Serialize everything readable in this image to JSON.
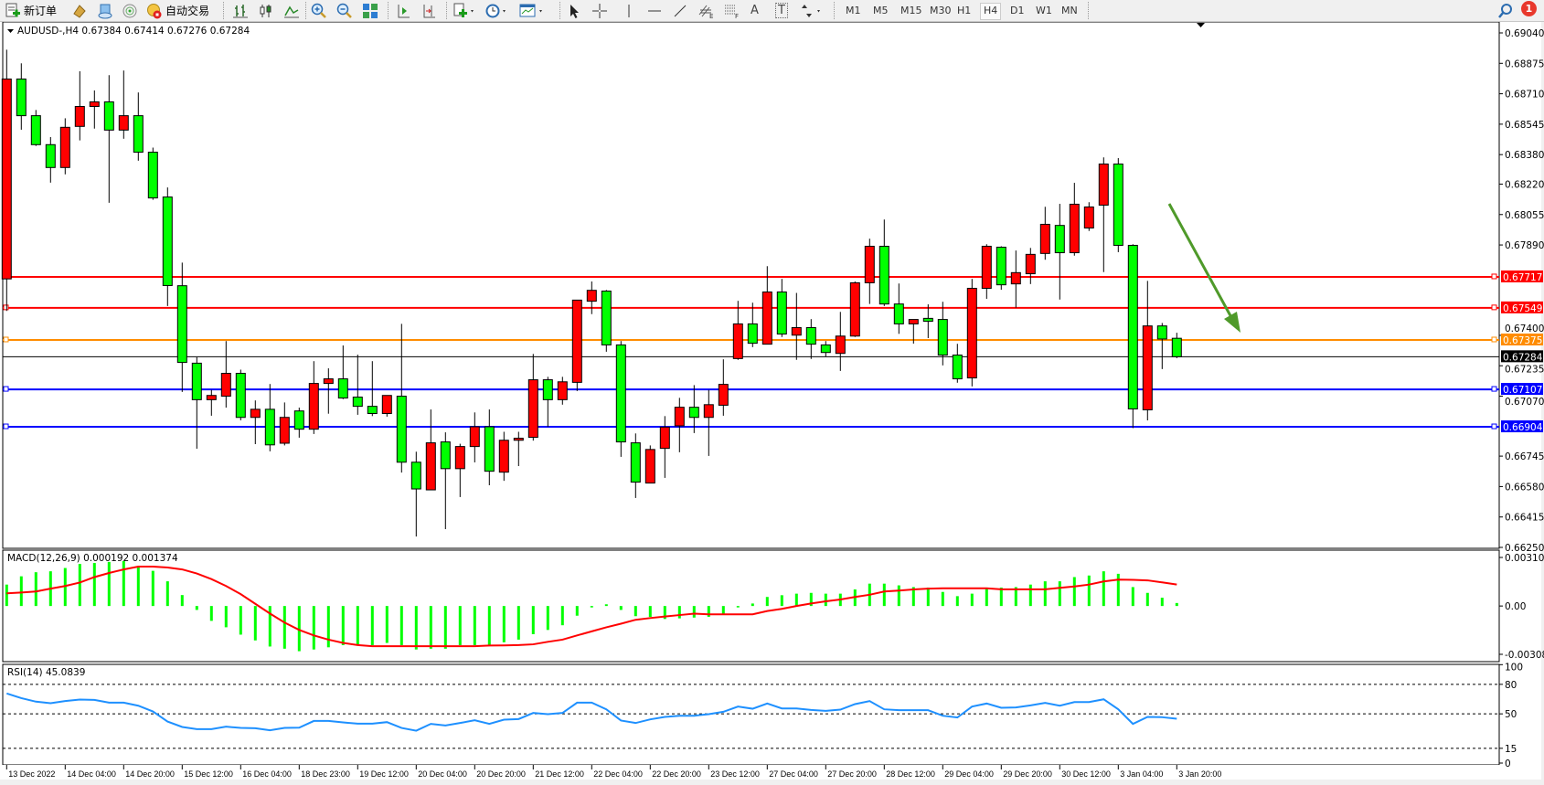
{
  "toolbar": {
    "new_order_label": "新订单",
    "auto_trading_label": "自动交易",
    "timeframes": [
      "M1",
      "M5",
      "M15",
      "M30",
      "H1",
      "H4",
      "D1",
      "W1",
      "MN"
    ],
    "selected_timeframe": "H4",
    "notification_count": "1",
    "text_tool_label": "A",
    "text_label_tool": "T"
  },
  "chart": {
    "header": "AUDUSD-,H4  0.67384 0.67414 0.67276 0.67284",
    "symbol": "AUDUSD-",
    "timeframe": "H4",
    "bull_color": "#ff0000",
    "bear_color": "#00ff00",
    "price_ticks": [
      "0.69040",
      "0.68875",
      "0.68710",
      "0.68545",
      "0.68380",
      "0.68220",
      "0.68055",
      "0.67890",
      "0.67400",
      "0.67235",
      "0.67070",
      "0.66745",
      "0.66580",
      "0.66415",
      "0.66250"
    ],
    "price_range": [
      0.6625,
      0.6904
    ],
    "current_price": {
      "value": 0.67284,
      "label": "0.67284",
      "color": "#000000"
    },
    "levels": [
      {
        "value": 0.67717,
        "label": "0.67717",
        "color": "#ff0000"
      },
      {
        "value": 0.67549,
        "label": "0.67549",
        "color": "#ff0000"
      },
      {
        "value": 0.67375,
        "label": "0.67375",
        "color": "#ff8c00"
      },
      {
        "value": 0.67107,
        "label": "0.67107",
        "color": "#0000ff"
      },
      {
        "value": 0.66904,
        "label": "0.66904",
        "color": "#0000ff"
      }
    ],
    "arrow_color": "#4f9a2a",
    "candles": [
      [
        0.67706,
        0.68949,
        0.67532,
        0.6879
      ],
      [
        0.6879,
        0.68875,
        0.68515,
        0.68591
      ],
      [
        0.68591,
        0.68622,
        0.68427,
        0.68434
      ],
      [
        0.68434,
        0.68475,
        0.68228,
        0.6831
      ],
      [
        0.6831,
        0.68577,
        0.68273,
        0.68528
      ],
      [
        0.68533,
        0.68832,
        0.68457,
        0.68641
      ],
      [
        0.68641,
        0.68728,
        0.68521,
        0.68666
      ],
      [
        0.68666,
        0.68811,
        0.68119,
        0.68513
      ],
      [
        0.68513,
        0.68836,
        0.68466,
        0.68591
      ],
      [
        0.68591,
        0.68717,
        0.68347,
        0.68393
      ],
      [
        0.68393,
        0.68418,
        0.68135,
        0.68145
      ],
      [
        0.6815,
        0.68202,
        0.67559,
        0.6767
      ],
      [
        0.67669,
        0.67794,
        0.67093,
        0.67253
      ],
      [
        0.67249,
        0.67281,
        0.66785,
        0.67051
      ],
      [
        0.67051,
        0.67104,
        0.66964,
        0.67074
      ],
      [
        0.6707,
        0.67369,
        0.67008,
        0.67194
      ],
      [
        0.67194,
        0.67214,
        0.66939,
        0.66955
      ],
      [
        0.66955,
        0.67047,
        0.6681,
        0.66999
      ],
      [
        0.66999,
        0.67136,
        0.66771,
        0.66806
      ],
      [
        0.66815,
        0.67036,
        0.66803,
        0.66955
      ],
      [
        0.6699,
        0.67008,
        0.66845,
        0.66891
      ],
      [
        0.66891,
        0.6726,
        0.66865,
        0.67139
      ],
      [
        0.67139,
        0.67221,
        0.66975,
        0.67164
      ],
      [
        0.67164,
        0.67345,
        0.67054,
        0.6706
      ],
      [
        0.67065,
        0.67295,
        0.66969,
        0.67015
      ],
      [
        0.67015,
        0.6726,
        0.66962,
        0.66976
      ],
      [
        0.66976,
        0.67074,
        0.66959,
        0.67074
      ],
      [
        0.6707,
        0.67462,
        0.66656,
        0.66712
      ],
      [
        0.66712,
        0.66769,
        0.66309,
        0.66567
      ],
      [
        0.66562,
        0.66998,
        0.66562,
        0.66817
      ],
      [
        0.66822,
        0.66874,
        0.66349,
        0.66677
      ],
      [
        0.66677,
        0.66812,
        0.66523,
        0.66797
      ],
      [
        0.66797,
        0.66982,
        0.66711,
        0.66904
      ],
      [
        0.66904,
        0.66998,
        0.66587,
        0.66663
      ],
      [
        0.66658,
        0.66877,
        0.66611,
        0.66831
      ],
      [
        0.66831,
        0.66877,
        0.66691,
        0.66842
      ],
      [
        0.66847,
        0.67299,
        0.66829,
        0.67159
      ],
      [
        0.67159,
        0.67175,
        0.66904,
        0.67051
      ],
      [
        0.67051,
        0.67175,
        0.67024,
        0.67148
      ],
      [
        0.67145,
        0.67591,
        0.67098,
        0.67591
      ],
      [
        0.67585,
        0.67692,
        0.67515,
        0.67644
      ],
      [
        0.6764,
        0.67646,
        0.67311,
        0.67348
      ],
      [
        0.67348,
        0.67369,
        0.66741,
        0.66822
      ],
      [
        0.66817,
        0.66868,
        0.66518,
        0.66604
      ],
      [
        0.66599,
        0.66803,
        0.66599,
        0.66781
      ],
      [
        0.66787,
        0.66962,
        0.66627,
        0.66902
      ],
      [
        0.66909,
        0.67061,
        0.66766,
        0.6701
      ],
      [
        0.6701,
        0.6713,
        0.6687,
        0.66955
      ],
      [
        0.66955,
        0.67104,
        0.66746,
        0.67024
      ],
      [
        0.67021,
        0.6727,
        0.66964,
        0.67134
      ],
      [
        0.67274,
        0.67587,
        0.67267,
        0.67462
      ],
      [
        0.67462,
        0.67577,
        0.67336,
        0.67357
      ],
      [
        0.67352,
        0.67775,
        0.67352,
        0.67635
      ],
      [
        0.67635,
        0.67706,
        0.67391,
        0.67407
      ],
      [
        0.67401,
        0.6763,
        0.67267,
        0.67442
      ],
      [
        0.67442,
        0.67488,
        0.67272,
        0.67352
      ],
      [
        0.67348,
        0.67369,
        0.67284,
        0.67307
      ],
      [
        0.67302,
        0.67527,
        0.67207,
        0.67396
      ],
      [
        0.67396,
        0.67692,
        0.67391,
        0.67685
      ],
      [
        0.67685,
        0.67924,
        0.6757,
        0.67883
      ],
      [
        0.67883,
        0.68028,
        0.67559,
        0.6757
      ],
      [
        0.6757,
        0.67681,
        0.67408,
        0.67462
      ],
      [
        0.67462,
        0.67486,
        0.67355,
        0.67486
      ],
      [
        0.67492,
        0.67568,
        0.67385,
        0.67476
      ],
      [
        0.67486,
        0.67582,
        0.67237,
        0.67293
      ],
      [
        0.67293,
        0.67354,
        0.67143,
        0.67164
      ],
      [
        0.67169,
        0.67706,
        0.67123,
        0.67655
      ],
      [
        0.67655,
        0.67894,
        0.67598,
        0.67883
      ],
      [
        0.67878,
        0.67883,
        0.67647,
        0.67674
      ],
      [
        0.67679,
        0.6786,
        0.6755,
        0.6774
      ],
      [
        0.67734,
        0.67874,
        0.67678,
        0.67839
      ],
      [
        0.67844,
        0.68097,
        0.6781,
        0.68002
      ],
      [
        0.67996,
        0.68113,
        0.67594,
        0.67848
      ],
      [
        0.67848,
        0.68227,
        0.67832,
        0.68111
      ],
      [
        0.67982,
        0.68122,
        0.67966,
        0.68096
      ],
      [
        0.68106,
        0.68365,
        0.67743,
        0.68329
      ],
      [
        0.68329,
        0.68361,
        0.67851,
        0.67888
      ],
      [
        0.67888,
        0.67894,
        0.66897,
        0.67001
      ],
      [
        0.66996,
        0.67695,
        0.66939,
        0.67451
      ],
      [
        0.67451,
        0.67467,
        0.67217,
        0.6738
      ],
      [
        0.67384,
        0.67414,
        0.67276,
        0.67284
      ]
    ],
    "time_labels": [
      "13 Dec 2022",
      "14 Dec 04:00",
      "14 Dec 20:00",
      "15 Dec 12:00",
      "16 Dec 04:00",
      "18 Dec 23:00",
      "19 Dec 12:00",
      "20 Dec 04:00",
      "20 Dec 20:00",
      "21 Dec 12:00",
      "22 Dec 04:00",
      "22 Dec 20:00",
      "23 Dec 12:00",
      "27 Dec 04:00",
      "27 Dec 20:00",
      "28 Dec 12:00",
      "29 Dec 04:00",
      "29 Dec 20:00",
      "30 Dec 12:00",
      "3 Jan 04:00",
      "3 Jan 20:00"
    ]
  },
  "macd": {
    "header": "MACD(12,26,9) 0.000192 0.001374",
    "ticks": [
      "0.003105",
      "0.00",
      "-0.003089"
    ],
    "range": [
      -0.003089,
      0.003105
    ],
    "histogram_color": "#00ff00",
    "signal_color": "#ff0000",
    "histogram": [
      0.00137,
      0.0019,
      0.00216,
      0.00222,
      0.00243,
      0.00269,
      0.00275,
      0.00282,
      0.00287,
      0.00252,
      0.00225,
      0.00158,
      0.0007,
      -0.00025,
      -0.00095,
      -0.00136,
      -0.00183,
      -0.0022,
      -0.00259,
      -0.00273,
      -0.00289,
      -0.00278,
      -0.00264,
      -0.0025,
      -0.0025,
      -0.0025,
      -0.00236,
      -0.0025,
      -0.00278,
      -0.00273,
      -0.00273,
      -0.0025,
      -0.0025,
      -0.0025,
      -0.00232,
      -0.00215,
      -0.0018,
      -0.00153,
      -0.00123,
      -0.00062,
      -9e-05,
      0.00011,
      -0.00025,
      -0.00065,
      -0.0007,
      -0.00083,
      -0.00079,
      -0.00074,
      -0.00069,
      -0.00049,
      -9e-05,
      0.00016,
      0.00058,
      0.00069,
      0.00079,
      0.00084,
      0.00079,
      0.00079,
      0.00106,
      0.00143,
      0.00143,
      0.00132,
      0.00121,
      0.00118,
      0.0009,
      0.00063,
      0.00079,
      0.00113,
      0.00118,
      0.00121,
      0.00137,
      0.00158,
      0.00158,
      0.00185,
      0.00195,
      0.00222,
      0.00206,
      0.00121,
      0.00084,
      0.00053,
      0.000192
    ],
    "signal": [
      0.00081,
      0.00086,
      0.00093,
      0.00111,
      0.00128,
      0.0015,
      0.00185,
      0.00211,
      0.00234,
      0.00252,
      0.00252,
      0.00246,
      0.00234,
      0.00208,
      0.00172,
      0.00128,
      0.00076,
      0.00014,
      -0.00048,
      -0.00106,
      -0.00153,
      -0.00188,
      -0.00215,
      -0.00236,
      -0.0025,
      -0.00257,
      -0.00257,
      -0.00257,
      -0.00257,
      -0.00257,
      -0.00257,
      -0.00257,
      -0.00257,
      -0.00253,
      -0.00252,
      -0.0025,
      -0.00245,
      -0.00229,
      -0.00215,
      -0.00188,
      -0.00162,
      -0.00136,
      -0.00113,
      -0.00088,
      -0.00077,
      -0.00067,
      -0.00058,
      -0.00049,
      -0.00053,
      -0.00053,
      -0.00053,
      -0.00053,
      -0.00032,
      -0.00018,
      0.0,
      0.00016,
      0.0003,
      0.00042,
      0.00058,
      0.00072,
      0.00093,
      0.00099,
      0.00106,
      0.00111,
      0.00113,
      0.00113,
      0.00113,
      0.00113,
      0.00107,
      0.00107,
      0.00107,
      0.00107,
      0.00116,
      0.00125,
      0.00137,
      0.00157,
      0.00169,
      0.00167,
      0.00164,
      0.00151,
      0.001374
    ]
  },
  "rsi": {
    "header": "RSI(14) 45.0839",
    "ticks": [
      "100",
      "80",
      "50",
      "15",
      "0"
    ],
    "levels": [
      80,
      50,
      15
    ],
    "line_color": "#1e90ff",
    "values": [
      70.7,
      66,
      62.4,
      60.8,
      63,
      64.5,
      64.2,
      61.4,
      61.4,
      58.3,
      52.4,
      42.2,
      36.7,
      34.5,
      34.5,
      37,
      35.7,
      35.4,
      33.3,
      35.7,
      36,
      42.8,
      42.8,
      41.3,
      40,
      40,
      41.6,
      35.7,
      32.9,
      39.8,
      38.2,
      40.7,
      43.5,
      39.8,
      44.1,
      44.7,
      50.9,
      49.7,
      50.9,
      61.4,
      61.4,
      54.6,
      43.2,
      40.7,
      44.4,
      46.9,
      48.1,
      48.1,
      49.7,
      52.1,
      57.4,
      55.2,
      60.5,
      55.5,
      55.5,
      54,
      53.1,
      54.3,
      59.9,
      63,
      54.6,
      53.7,
      53.7,
      53.7,
      48.1,
      46.3,
      57.4,
      60.5,
      56.2,
      56.5,
      58.6,
      61.1,
      58.3,
      62,
      62,
      64.8,
      54.6,
      39.8,
      46.9,
      46.6,
      45.0839
    ]
  }
}
